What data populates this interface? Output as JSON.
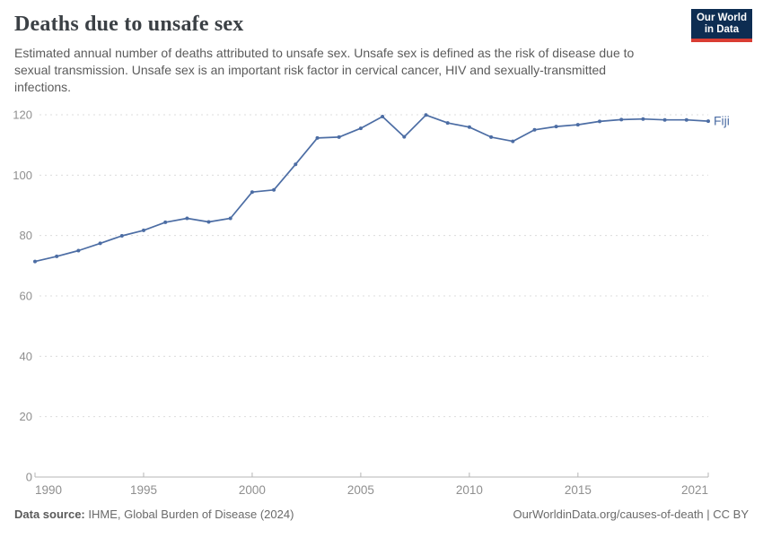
{
  "header": {
    "title": "Deaths due to unsafe sex",
    "subtitle": "Estimated annual number of deaths attributed to unsafe sex. Unsafe sex is defined as the risk of disease due to sexual transmission. Unsafe sex is an important risk factor in cervical cancer, HIV and sexually-transmitted infections."
  },
  "logo": {
    "line1": "Our World",
    "line2": "in Data"
  },
  "chart_data": {
    "type": "line",
    "title": "Deaths due to unsafe sex",
    "entity": "Fiji",
    "x": [
      1990,
      1991,
      1992,
      1993,
      1994,
      1995,
      1996,
      1997,
      1998,
      1999,
      2000,
      2001,
      2002,
      2003,
      2004,
      2005,
      2006,
      2007,
      2008,
      2009,
      2010,
      2011,
      2012,
      2013,
      2014,
      2015,
      2016,
      2017,
      2018,
      2019,
      2020,
      2021
    ],
    "series": [
      {
        "name": "Fiji",
        "values": [
          71.4,
          73.1,
          75.0,
          77.4,
          79.9,
          81.7,
          84.4,
          85.7,
          84.5,
          85.7,
          94.4,
          95.1,
          103.6,
          112.3,
          112.6,
          115.5,
          119.4,
          112.7,
          119.9,
          117.3,
          115.9,
          112.6,
          111.2,
          115.0,
          116.1,
          116.7,
          117.8,
          118.4,
          118.6,
          118.3,
          118.3,
          117.9
        ]
      }
    ],
    "xlabel": "",
    "ylabel": "",
    "xlim": [
      1990,
      2021
    ],
    "ylim": [
      0,
      120
    ],
    "xticks": [
      1990,
      1995,
      2000,
      2005,
      2010,
      2015,
      2021
    ],
    "yticks": [
      0,
      20,
      40,
      60,
      80,
      100,
      120
    ],
    "grid": "horizontal-dashed",
    "legend_position": "end-of-line-label"
  },
  "colors": {
    "series": "#4c6da4",
    "title": "#3b4045",
    "subtitle": "#5b5b5b",
    "axis_label": "#8f8f8f",
    "gridline": "#dcdcdc",
    "baseline": "#b5b5b5",
    "logo_navy": "#0d2d52",
    "logo_red": "#d93d33"
  },
  "footer": {
    "datasource_label": "Data source:",
    "datasource_text": "IHME, Global Burden of Disease (2024)",
    "credit": "OurWorldinData.org/causes-of-death | CC BY"
  }
}
